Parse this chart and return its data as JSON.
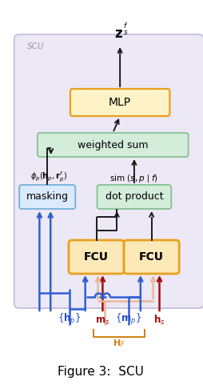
{
  "title": "Figure 3:  SCU",
  "output_label_z": "$\\mathbf{z}$",
  "output_label_sf": "$^f_s$",
  "scu_label": "SCU",
  "mlp_label": "MLP",
  "weighted_sum_label": "weighted sum",
  "dot_product_label": "dot product",
  "masking_label": "masking",
  "fcu_label": "FCU",
  "phi_label": "$\\phi_p(\\mathbf{h}_p, \\mathbf{r}_p^f)$",
  "sim_label": "sim $(s, p \\mid f)$",
  "hf_label": "$\\mathbf{H}_F$",
  "colors": {
    "scu_bg": "#ede8f5",
    "scu_border": "#c5b8df",
    "mlp_fill": "#fef3c7",
    "mlp_border": "#e8a020",
    "weighted_sum_fill": "#d4edda",
    "weighted_sum_border": "#7cbf8a",
    "dot_product_fill": "#d4edda",
    "dot_product_border": "#7cbf8a",
    "masking_fill": "#dbeafe",
    "masking_border": "#6baad8",
    "fcu_fill": "#fde8b8",
    "fcu_border": "#e8a020",
    "blue": "#3060d0",
    "dark_red": "#a01010",
    "peach": "#e8b898",
    "orange": "#e8941a",
    "black": "#1a1a1a",
    "text_blue": "#2050c8",
    "text_red": "#a01010",
    "text_orange": "#d08010",
    "gray": "#999999"
  }
}
